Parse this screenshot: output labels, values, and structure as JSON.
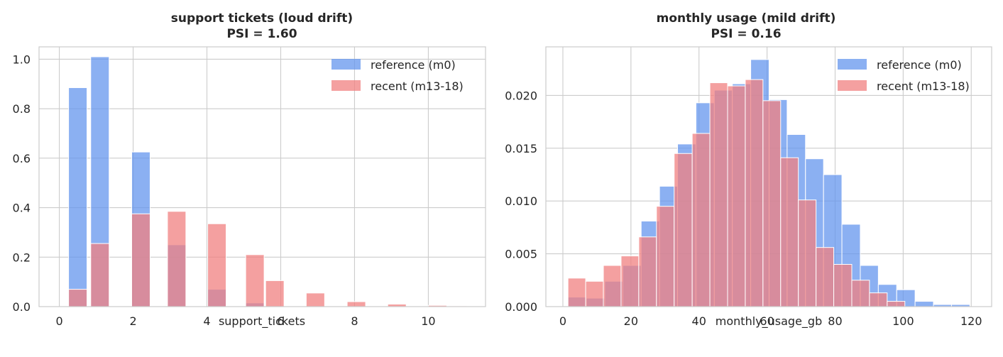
{
  "colors": {
    "reference": "#6495ED",
    "recent": "#F08080",
    "grid": "#cccccc",
    "background": "#ffffff"
  },
  "chart_data": [
    {
      "type": "bar",
      "title": "support tickets (loud drift)",
      "subtitle": "PSI = 1.60",
      "xlabel": "support_tickets",
      "ylabel": "",
      "xlim": [
        -0.55,
        11.55
      ],
      "ylim": [
        0,
        1.05
      ],
      "xticks": [
        0,
        2,
        4,
        6,
        8,
        10
      ],
      "yticks": [
        0.0,
        0.2,
        0.4,
        0.6,
        0.8,
        1.0
      ],
      "xtick_labels": [
        "0",
        "2",
        "4",
        "6",
        "8",
        "10"
      ],
      "ytick_labels": [
        "0.0",
        "0.2",
        "0.4",
        "0.6",
        "0.8",
        "1.0"
      ],
      "grid": true,
      "legend_position": "top-right",
      "bar_width": 0.5,
      "series": [
        {
          "name": "reference (m0)",
          "color_key": "reference",
          "x": [
            0.25,
            0.85,
            1.96,
            2.93,
            4.02,
            5.05
          ],
          "values": [
            0.885,
            1.01,
            0.625,
            0.25,
            0.07,
            0.015
          ]
        },
        {
          "name": "recent (m13-18)",
          "color_key": "recent",
          "x": [
            0.25,
            0.85,
            1.96,
            2.93,
            4.02,
            5.05,
            5.59,
            6.69,
            7.8,
            8.9,
            10.0,
            10.55
          ],
          "values": [
            0.07,
            0.255,
            0.375,
            0.385,
            0.335,
            0.21,
            0.105,
            0.055,
            0.02,
            0.01,
            0.005,
            0.003
          ]
        }
      ]
    },
    {
      "type": "bar",
      "title": "monthly usage (mild drift)",
      "subtitle": "PSI = 0.16",
      "xlabel": "monthly_usage_gb",
      "ylabel": "",
      "xlim": [
        -5,
        126
      ],
      "ylim": [
        0,
        0.0246
      ],
      "xticks": [
        0,
        20,
        40,
        60,
        80,
        100,
        120
      ],
      "yticks": [
        0.0,
        0.005,
        0.01,
        0.015,
        0.02
      ],
      "xtick_labels": [
        "0",
        "20",
        "40",
        "60",
        "80",
        "100",
        "120"
      ],
      "ytick_labels": [
        "0.000",
        "0.005",
        "0.010",
        "0.015",
        "0.020"
      ],
      "grid": true,
      "legend_position": "top-right",
      "series": [
        {
          "name": "reference (m0)",
          "color_key": "reference",
          "bin_edges": [
            1.5,
            6.9,
            12.3,
            17.6,
            23.0,
            28.4,
            33.7,
            39.1,
            44.5,
            49.8,
            55.2,
            60.6,
            65.9,
            71.3,
            76.6,
            82.0,
            87.4,
            92.7,
            98.1,
            103.5,
            108.9,
            114.2,
            119.6
          ],
          "values": [
            0.0009,
            0.0008,
            0.0024,
            0.0039,
            0.0081,
            0.0114,
            0.0154,
            0.0193,
            0.0205,
            0.0211,
            0.0234,
            0.0196,
            0.0163,
            0.014,
            0.0125,
            0.0078,
            0.0039,
            0.0021,
            0.0016,
            0.0005,
            0.0002,
            0.0002
          ]
        },
        {
          "name": "recent (m13-18)",
          "color_key": "recent",
          "bin_edges": [
            1.5,
            6.7,
            11.9,
            17.1,
            22.3,
            27.5,
            32.7,
            38.0,
            43.2,
            48.4,
            53.6,
            58.8,
            64.0,
            69.2,
            74.4,
            79.6,
            84.9,
            90.1,
            95.3,
            100.5
          ],
          "values": [
            0.0027,
            0.0024,
            0.0039,
            0.0048,
            0.0066,
            0.0095,
            0.0145,
            0.0164,
            0.0212,
            0.0209,
            0.0215,
            0.0195,
            0.0141,
            0.0101,
            0.0056,
            0.004,
            0.0025,
            0.0013,
            0.0005
          ]
        }
      ]
    }
  ]
}
